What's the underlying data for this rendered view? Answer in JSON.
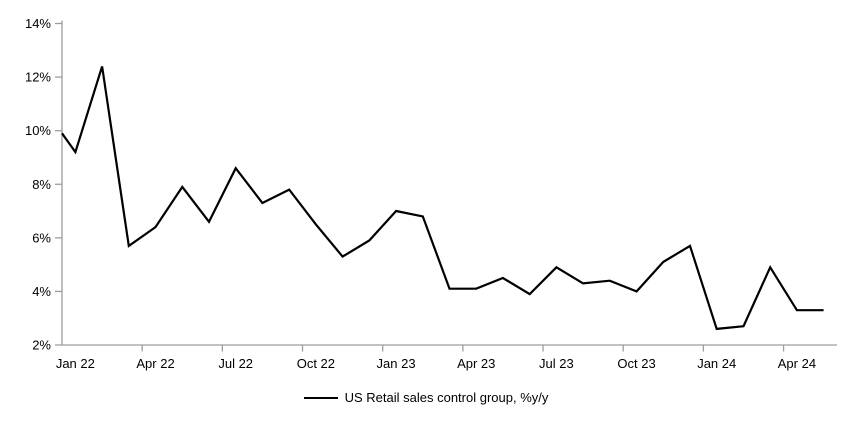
{
  "chart_data": {
    "type": "line",
    "title": "",
    "xlabel": "",
    "ylabel": "",
    "legend": "US Retail sales control group, %y/y",
    "legend_position": "bottom-center",
    "grid": false,
    "line_color": "#000000",
    "axis_color": "#9d9d9d",
    "text_color": "#000000",
    "background_color": "#ffffff",
    "ylim": [
      2,
      14
    ],
    "ytick_step": 2,
    "ytick_labels": [
      "2%",
      "4%",
      "6%",
      "8%",
      "10%",
      "12%",
      "14%"
    ],
    "xtick_labels": [
      "Jan 22",
      "Apr 22",
      "Jul 22",
      "Oct 22",
      "Jan 23",
      "Apr 23",
      "Jul 23",
      "Oct 23",
      "Jan 24",
      "Apr 24"
    ],
    "x": [
      "Jan 22",
      "Feb 22",
      "Mar 22",
      "Apr 22",
      "May 22",
      "Jun 22",
      "Jul 22",
      "Aug 22",
      "Sep 22",
      "Oct 22",
      "Nov 22",
      "Dec 22",
      "Jan 23",
      "Feb 23",
      "Mar 23",
      "Apr 23",
      "May 23",
      "Jun 23",
      "Jul 23",
      "Aug 23",
      "Sep 23",
      "Oct 23",
      "Nov 23",
      "Dec 23",
      "Jan 24",
      "Feb 24",
      "Mar 24",
      "Apr 24",
      "May 24"
    ],
    "values": [
      9.2,
      12.4,
      5.7,
      6.4,
      7.9,
      6.6,
      8.6,
      7.3,
      7.8,
      6.5,
      5.3,
      5.9,
      7.0,
      6.8,
      4.1,
      4.1,
      4.5,
      3.9,
      4.9,
      4.3,
      4.4,
      4.0,
      5.1,
      5.7,
      2.6,
      2.7,
      4.9,
      3.3,
      3.3
    ],
    "edge_start_value": 9.9
  }
}
